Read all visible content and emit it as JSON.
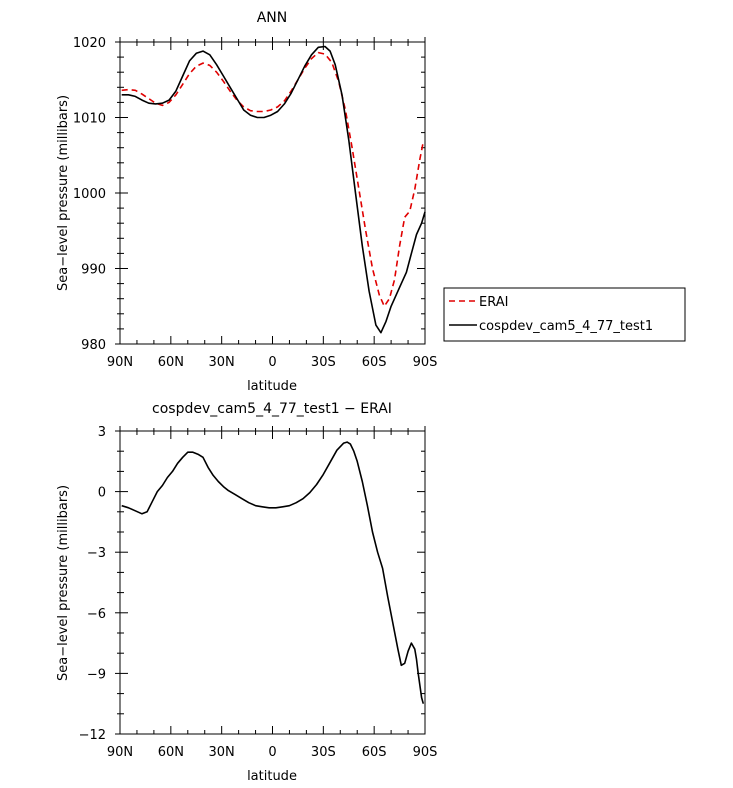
{
  "chart_data": [
    {
      "type": "line",
      "title": "ANN",
      "xlabel": "latitude",
      "ylabel": "Sea−level pressure (millibars)",
      "xlim": [
        90,
        -90
      ],
      "ylim": [
        980,
        1020
      ],
      "x_tick_values": [
        90,
        60,
        30,
        0,
        -30,
        -60,
        -90
      ],
      "x_tick_labels": [
        "90N",
        "60N",
        "30N",
        "0",
        "30S",
        "60S",
        "90S"
      ],
      "y_tick_values": [
        980,
        990,
        1000,
        1010,
        1020
      ],
      "y_tick_labels": [
        "980",
        "990",
        "1000",
        "1010",
        "1020"
      ],
      "legend": "right",
      "series": [
        {
          "name": "ERAI",
          "color": "#e00000",
          "dash": "dashed",
          "x": [
            89,
            85,
            81,
            77,
            73,
            69,
            65,
            61,
            57,
            53,
            49,
            45,
            41,
            37,
            33,
            29,
            25,
            21,
            17,
            13,
            9,
            5,
            1,
            -3,
            -7,
            -11,
            -15,
            -19,
            -23,
            -27,
            -31,
            -35,
            -39,
            -43,
            -47,
            -51,
            -55,
            -59,
            -63,
            -66,
            -69,
            -72,
            -75,
            -78,
            -81,
            -84,
            -87,
            -89
          ],
          "y": [
            1013.6,
            1013.7,
            1013.6,
            1013.1,
            1012.5,
            1011.9,
            1011.6,
            1012.0,
            1013.0,
            1014.4,
            1015.8,
            1016.8,
            1017.2,
            1016.9,
            1016.0,
            1014.8,
            1013.5,
            1012.3,
            1011.4,
            1010.9,
            1010.8,
            1010.8,
            1011.0,
            1011.4,
            1012.2,
            1013.5,
            1015.0,
            1016.5,
            1017.8,
            1018.6,
            1018.4,
            1017.3,
            1014.8,
            1011.0,
            1006.0,
            1000.5,
            995.0,
            990.0,
            986.5,
            985.0,
            986.0,
            988.5,
            993.0,
            996.8,
            997.6,
            1000.5,
            1004.5,
            1006.8
          ]
        },
        {
          "name": "cospdev_cam5_4_77_test1",
          "color": "#000000",
          "dash": "solid",
          "x": [
            89,
            85,
            81,
            77,
            73,
            69,
            65,
            61,
            57,
            53,
            49,
            45,
            41,
            37,
            33,
            29,
            25,
            21,
            17,
            13,
            9,
            5,
            1,
            -3,
            -7,
            -11,
            -15,
            -19,
            -23,
            -27,
            -31,
            -34,
            -37,
            -41,
            -45,
            -49,
            -53,
            -57,
            -61,
            -64,
            -67,
            -70,
            -73,
            -76,
            -79,
            -82,
            -85,
            -88,
            -90
          ],
          "y": [
            1013.0,
            1013.0,
            1012.8,
            1012.3,
            1011.9,
            1011.8,
            1011.9,
            1012.3,
            1013.5,
            1015.5,
            1017.5,
            1018.5,
            1018.8,
            1018.3,
            1017.0,
            1015.5,
            1014.0,
            1012.5,
            1011.0,
            1010.3,
            1010.0,
            1010.0,
            1010.3,
            1010.8,
            1011.8,
            1013.2,
            1015.0,
            1016.8,
            1018.3,
            1019.3,
            1019.4,
            1018.8,
            1017.0,
            1013.0,
            1007.0,
            1000.0,
            993.0,
            987.0,
            982.5,
            981.5,
            983.0,
            985.0,
            986.5,
            988.0,
            989.5,
            992.0,
            994.5,
            996.0,
            997.5
          ]
        }
      ]
    },
    {
      "type": "line",
      "title": "cospdev_cam5_4_77_test1 − ERAI",
      "xlabel": "latitude",
      "ylabel": "Sea−level pressure (millibars)",
      "xlim": [
        90,
        -90
      ],
      "ylim": [
        -12,
        3
      ],
      "x_tick_values": [
        90,
        60,
        30,
        0,
        -30,
        -60,
        -90
      ],
      "x_tick_labels": [
        "90N",
        "60N",
        "30N",
        "0",
        "30S",
        "60S",
        "90S"
      ],
      "y_tick_values": [
        3,
        0,
        -3,
        -6,
        -9,
        -12
      ],
      "y_tick_labels": [
        "3",
        "0",
        "−3",
        "−6",
        "−9",
        "−12"
      ],
      "series": [
        {
          "color": "#000000",
          "dash": "solid",
          "x": [
            89,
            85,
            81,
            77,
            74,
            71,
            68,
            65,
            62,
            59,
            56,
            53,
            50,
            47,
            44,
            41,
            38,
            35,
            32,
            29,
            26,
            22,
            18,
            14,
            10,
            6,
            2,
            -2,
            -6,
            -10,
            -14,
            -18,
            -22,
            -26,
            -30,
            -34,
            -38,
            -42,
            -44,
            -46,
            -48,
            -50,
            -53,
            -56,
            -59,
            -62,
            -65,
            -68,
            -71,
            -74,
            -76,
            -78,
            -80,
            -82,
            -84,
            -85,
            -86,
            -87,
            -88,
            -89
          ],
          "y": [
            -0.7,
            -0.8,
            -0.95,
            -1.1,
            -1.0,
            -0.5,
            0.0,
            0.3,
            0.7,
            1.0,
            1.4,
            1.7,
            1.95,
            1.95,
            1.85,
            1.7,
            1.2,
            0.8,
            0.5,
            0.25,
            0.05,
            -0.15,
            -0.35,
            -0.55,
            -0.7,
            -0.75,
            -0.8,
            -0.8,
            -0.75,
            -0.7,
            -0.55,
            -0.35,
            -0.05,
            0.35,
            0.85,
            1.45,
            2.05,
            2.4,
            2.45,
            2.35,
            2.0,
            1.5,
            0.5,
            -0.7,
            -2.0,
            -3.0,
            -3.8,
            -5.2,
            -6.5,
            -7.8,
            -8.6,
            -8.5,
            -7.9,
            -7.5,
            -7.8,
            -8.3,
            -9.0,
            -9.6,
            -10.2,
            -10.5
          ]
        }
      ]
    }
  ]
}
